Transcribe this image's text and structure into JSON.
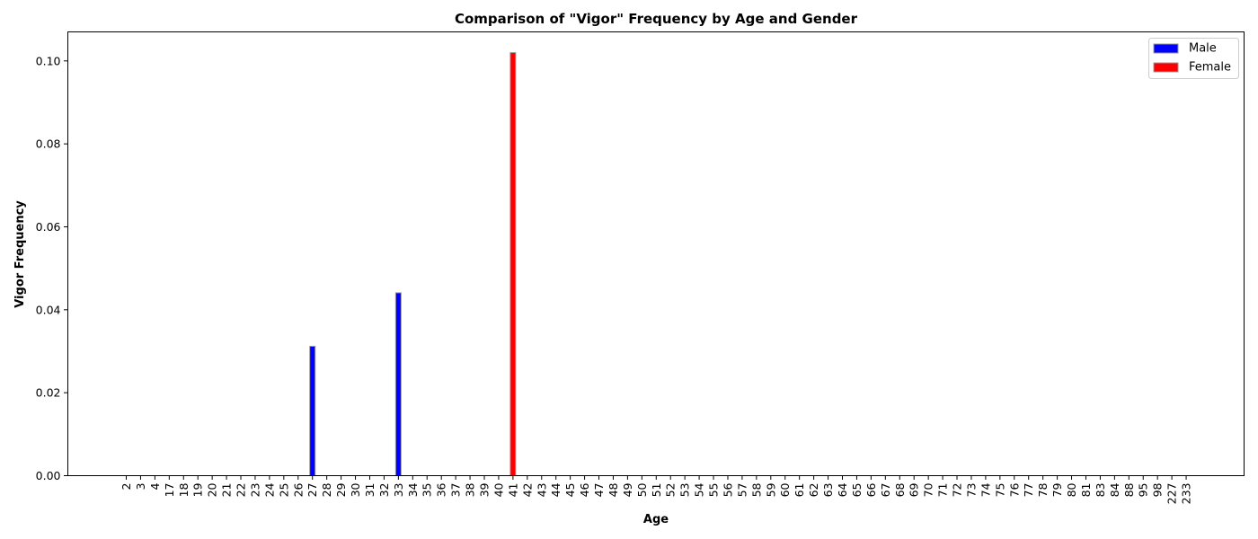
{
  "chart_data": {
    "type": "bar",
    "title": "Comparison of \"Vigor\" Frequency by Age and Gender",
    "xlabel": "Age",
    "ylabel": "Vigor Frequency",
    "ylim": [
      0,
      0.107
    ],
    "yticks": [
      "0.00",
      "0.02",
      "0.04",
      "0.06",
      "0.08",
      "0.10"
    ],
    "ytick_values": [
      0,
      0.02,
      0.04,
      0.06,
      0.08,
      0.1
    ],
    "grid": false,
    "legend_position": "top-right",
    "categories": [
      "2",
      "3",
      "4",
      "17",
      "18",
      "19",
      "20",
      "21",
      "22",
      "23",
      "24",
      "25",
      "26",
      "27",
      "28",
      "29",
      "30",
      "31",
      "32",
      "33",
      "34",
      "35",
      "36",
      "37",
      "38",
      "39",
      "40",
      "41",
      "42",
      "43",
      "44",
      "45",
      "46",
      "47",
      "48",
      "49",
      "50",
      "51",
      "52",
      "53",
      "54",
      "55",
      "56",
      "57",
      "58",
      "59",
      "60",
      "61",
      "62",
      "63",
      "64",
      "65",
      "66",
      "67",
      "68",
      "69",
      "70",
      "71",
      "72",
      "73",
      "74",
      "75",
      "76",
      "77",
      "78",
      "79",
      "80",
      "81",
      "83",
      "84",
      "88",
      "95",
      "98",
      "227",
      "233"
    ],
    "series": [
      {
        "name": "Male",
        "color": "#0000ff",
        "values": [
          0,
          0,
          0,
          0,
          0,
          0,
          0,
          0,
          0,
          0,
          0,
          0,
          0,
          0.0312,
          0,
          0,
          0,
          0,
          0,
          0.0441,
          0,
          0,
          0,
          0,
          0,
          0,
          0,
          0,
          0,
          0,
          0,
          0,
          0,
          0,
          0,
          0,
          0,
          0,
          0,
          0,
          0,
          0,
          0,
          0,
          0,
          0,
          0,
          0,
          0,
          0,
          0,
          0,
          0,
          0,
          0,
          0,
          0,
          0,
          0,
          0,
          0,
          0,
          0,
          0,
          0,
          0,
          0,
          0,
          0,
          0,
          0,
          0,
          0,
          0,
          0
        ]
      },
      {
        "name": "Female",
        "color": "#ff0000",
        "values": [
          0,
          0,
          0,
          0,
          0,
          0,
          0,
          0,
          0,
          0,
          0,
          0,
          0,
          0,
          0,
          0,
          0,
          0,
          0,
          0,
          0,
          0,
          0,
          0,
          0,
          0,
          0,
          0.102,
          0,
          0,
          0,
          0,
          0,
          0,
          0,
          0,
          0,
          0,
          0,
          0,
          0,
          0,
          0,
          0,
          0,
          0,
          0,
          0,
          0,
          0,
          0,
          0,
          0,
          0,
          0,
          0,
          0,
          0,
          0,
          0,
          0,
          0,
          0,
          0,
          0,
          0,
          0,
          0,
          0,
          0,
          0,
          0,
          0,
          0,
          0
        ]
      }
    ]
  }
}
